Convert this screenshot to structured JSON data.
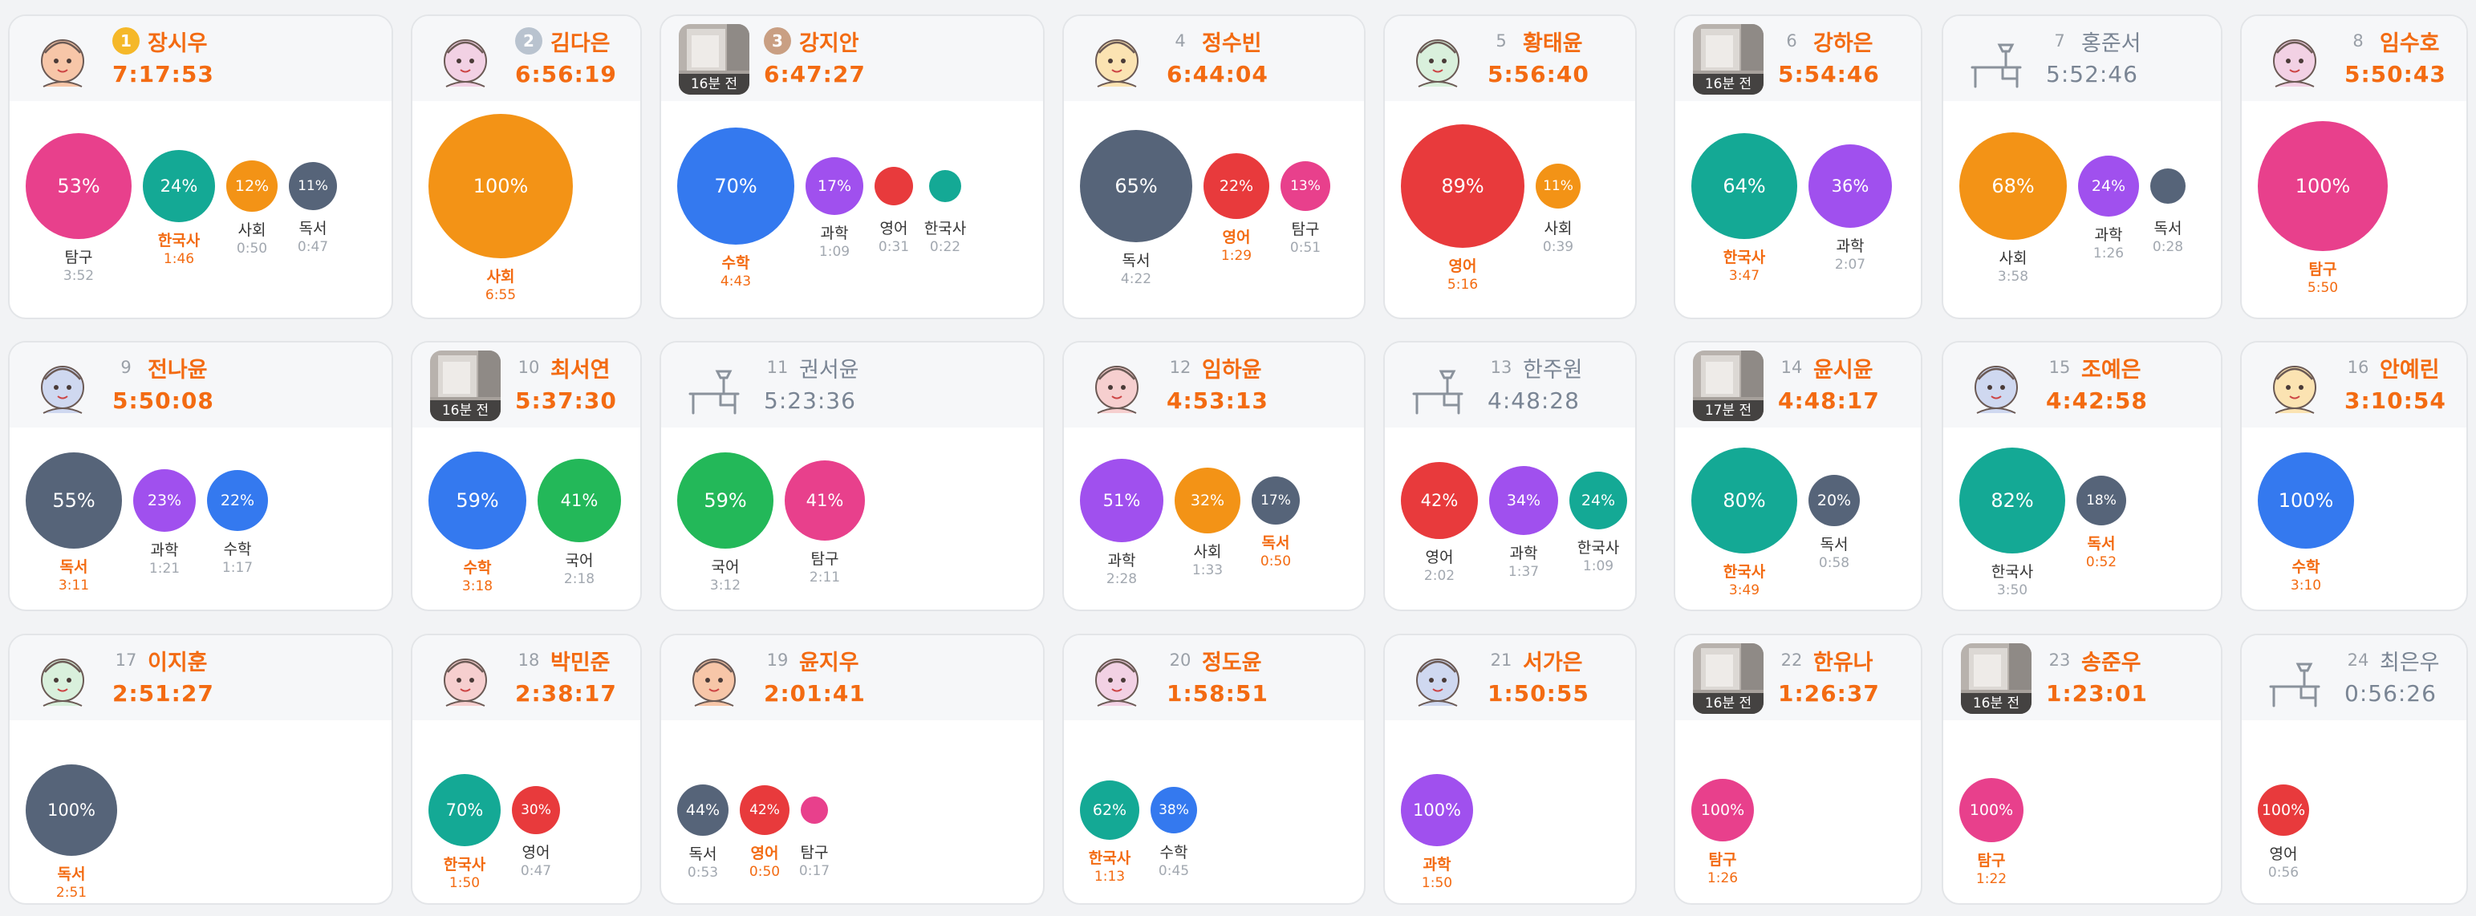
{
  "time_ago_suffix": "",
  "colors": {
    "탐구": "#e8408c",
    "한국사": "#14a995",
    "사회": "#f39316",
    "독서": "#566479",
    "수학": "#3479ef",
    "과학": "#a050ee",
    "영어": "#e83a3c",
    "국어": "#23b859"
  },
  "cards": [
    {
      "rank": "1",
      "name": "장시우",
      "time": "7:17:53",
      "avatar": "doodle",
      "subjects": [
        {
          "subject": "탐구",
          "percent": "53%",
          "duration": "3:52"
        },
        {
          "subject": "한국사",
          "percent": "24%",
          "duration": "1:46",
          "top": true
        },
        {
          "subject": "사회",
          "percent": "12%",
          "duration": "0:50"
        },
        {
          "subject": "독서",
          "percent": "11%",
          "duration": "0:47"
        }
      ]
    },
    {
      "rank": "2",
      "name": "김다은",
      "time": "6:56:19",
      "avatar": "doodle",
      "subjects": [
        {
          "subject": "사회",
          "percent": "100%",
          "duration": "6:55",
          "top": true
        }
      ]
    },
    {
      "rank": "3",
      "name": "강지안",
      "time": "6:47:27",
      "avatar": "photo",
      "ago": "16분 전",
      "subjects": [
        {
          "subject": "수학",
          "percent": "70%",
          "duration": "4:43",
          "top": true
        },
        {
          "subject": "과학",
          "percent": "17%",
          "duration": "1:09"
        },
        {
          "subject": "영어",
          "percent": "",
          "duration": "0:31"
        },
        {
          "subject": "한국사",
          "percent": "",
          "duration": "0:22"
        }
      ]
    },
    {
      "rank": "4",
      "name": "정수빈",
      "time": "6:44:04",
      "avatar": "doodle",
      "subjects": [
        {
          "subject": "독서",
          "percent": "65%",
          "duration": "4:22"
        },
        {
          "subject": "영어",
          "percent": "22%",
          "duration": "1:29",
          "top": true
        },
        {
          "subject": "탐구",
          "percent": "13%",
          "duration": "0:51"
        }
      ]
    },
    {
      "rank": "5",
      "name": "황태윤",
      "time": "5:56:40",
      "avatar": "doodle",
      "subjects": [
        {
          "subject": "영어",
          "percent": "89%",
          "duration": "5:16",
          "top": true
        },
        {
          "subject": "사회",
          "percent": "11%",
          "duration": "0:39"
        }
      ]
    },
    {
      "rank": "6",
      "name": "강하은",
      "time": "5:54:46",
      "avatar": "photo",
      "ago": "16분 전",
      "subjects": [
        {
          "subject": "한국사",
          "percent": "64%",
          "duration": "3:47",
          "top": true
        },
        {
          "subject": "과학",
          "percent": "36%",
          "duration": "2:07"
        }
      ]
    },
    {
      "rank": "7",
      "name": "홍준서",
      "time": "5:52:46",
      "avatar": "desk",
      "offline": true,
      "subjects": [
        {
          "subject": "사회",
          "percent": "68%",
          "duration": "3:58"
        },
        {
          "subject": "과학",
          "percent": "24%",
          "duration": "1:26"
        },
        {
          "subject": "독서",
          "percent": "",
          "duration": "0:28"
        }
      ]
    },
    {
      "rank": "8",
      "name": "임수호",
      "time": "5:50:43",
      "avatar": "doodle",
      "subjects": [
        {
          "subject": "탐구",
          "percent": "100%",
          "duration": "5:50",
          "top": true
        }
      ]
    },
    {
      "rank": "9",
      "name": "전나윤",
      "time": "5:50:08",
      "avatar": "doodle",
      "subjects": [
        {
          "subject": "독서",
          "percent": "55%",
          "duration": "3:11",
          "top": true
        },
        {
          "subject": "과학",
          "percent": "23%",
          "duration": "1:21"
        },
        {
          "subject": "수학",
          "percent": "22%",
          "duration": "1:17"
        }
      ]
    },
    {
      "rank": "10",
      "name": "최서연",
      "time": "5:37:30",
      "avatar": "photo",
      "ago": "16분 전",
      "subjects": [
        {
          "subject": "수학",
          "percent": "59%",
          "duration": "3:18",
          "top": true
        },
        {
          "subject": "국어",
          "percent": "41%",
          "duration": "2:18"
        }
      ]
    },
    {
      "rank": "11",
      "name": "권서윤",
      "time": "5:23:36",
      "avatar": "desk",
      "offline": true,
      "subjects": [
        {
          "subject": "국어",
          "percent": "59%",
          "duration": "3:12"
        },
        {
          "subject": "탐구",
          "percent": "41%",
          "duration": "2:11"
        }
      ]
    },
    {
      "rank": "12",
      "name": "임하윤",
      "time": "4:53:13",
      "avatar": "doodle",
      "subjects": [
        {
          "subject": "과학",
          "percent": "51%",
          "duration": "2:28"
        },
        {
          "subject": "사회",
          "percent": "32%",
          "duration": "1:33"
        },
        {
          "subject": "독서",
          "percent": "17%",
          "duration": "0:50",
          "top": true
        }
      ]
    },
    {
      "rank": "13",
      "name": "한주원",
      "time": "4:48:28",
      "avatar": "desk",
      "offline": true,
      "subjects": [
        {
          "subject": "영어",
          "percent": "42%",
          "duration": "2:02"
        },
        {
          "subject": "과학",
          "percent": "34%",
          "duration": "1:37"
        },
        {
          "subject": "한국사",
          "percent": "24%",
          "duration": "1:09"
        }
      ]
    },
    {
      "rank": "14",
      "name": "윤시윤",
      "time": "4:48:17",
      "avatar": "photo",
      "ago": "17분 전",
      "subjects": [
        {
          "subject": "한국사",
          "percent": "80%",
          "duration": "3:49",
          "top": true
        },
        {
          "subject": "독서",
          "percent": "20%",
          "duration": "0:58"
        }
      ]
    },
    {
      "rank": "15",
      "name": "조예은",
      "time": "4:42:58",
      "avatar": "doodle",
      "subjects": [
        {
          "subject": "한국사",
          "percent": "82%",
          "duration": "3:50"
        },
        {
          "subject": "독서",
          "percent": "18%",
          "duration": "0:52",
          "top": true
        }
      ]
    },
    {
      "rank": "16",
      "name": "안예린",
      "time": "3:10:54",
      "avatar": "doodle",
      "subjects": [
        {
          "subject": "수학",
          "percent": "100%",
          "duration": "3:10",
          "top": true
        }
      ]
    },
    {
      "rank": "17",
      "name": "이지훈",
      "time": "2:51:27",
      "avatar": "doodle",
      "subjects": [
        {
          "subject": "독서",
          "percent": "100%",
          "duration": "2:51",
          "top": true
        }
      ]
    },
    {
      "rank": "18",
      "name": "박민준",
      "time": "2:38:17",
      "avatar": "doodle",
      "subjects": [
        {
          "subject": "한국사",
          "percent": "70%",
          "duration": "1:50",
          "top": true
        },
        {
          "subject": "영어",
          "percent": "30%",
          "duration": "0:47"
        }
      ]
    },
    {
      "rank": "19",
      "name": "윤지우",
      "time": "2:01:41",
      "avatar": "doodle",
      "subjects": [
        {
          "subject": "독서",
          "percent": "44%",
          "duration": "0:53"
        },
        {
          "subject": "영어",
          "percent": "42%",
          "duration": "0:50",
          "top": true
        },
        {
          "subject": "탐구",
          "percent": "",
          "duration": "0:17"
        }
      ]
    },
    {
      "rank": "20",
      "name": "정도윤",
      "time": "1:58:51",
      "avatar": "doodle",
      "subjects": [
        {
          "subject": "한국사",
          "percent": "62%",
          "duration": "1:13",
          "top": true
        },
        {
          "subject": "수학",
          "percent": "38%",
          "duration": "0:45"
        }
      ]
    },
    {
      "rank": "21",
      "name": "서가은",
      "time": "1:50:55",
      "avatar": "doodle",
      "subjects": [
        {
          "subject": "과학",
          "percent": "100%",
          "duration": "1:50",
          "top": true
        }
      ]
    },
    {
      "rank": "22",
      "name": "한유나",
      "time": "1:26:37",
      "avatar": "photo",
      "ago": "16분 전",
      "subjects": [
        {
          "subject": "탐구",
          "percent": "100%",
          "duration": "1:26",
          "top": true
        }
      ]
    },
    {
      "rank": "23",
      "name": "송준우",
      "time": "1:23:01",
      "avatar": "photo",
      "ago": "16분 전",
      "subjects": [
        {
          "subject": "탐구",
          "percent": "100%",
          "duration": "1:22",
          "top": true
        }
      ]
    },
    {
      "rank": "24",
      "name": "최은우",
      "time": "0:56:26",
      "avatar": "desk",
      "offline": true,
      "subjects": [
        {
          "subject": "영어",
          "percent": "100%",
          "duration": "0:56"
        }
      ]
    }
  ]
}
